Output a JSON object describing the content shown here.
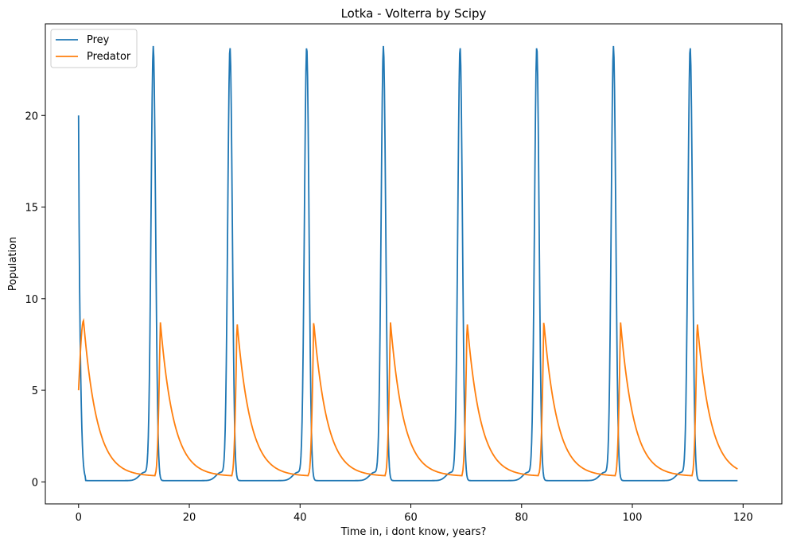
{
  "chart_data": {
    "type": "line",
    "title": "Lotka - Volterra by Scipy",
    "xlabel": "Time in, i dont know, years?",
    "ylabel": "Population",
    "xlim": [
      -6,
      127
    ],
    "ylim": [
      -1.2,
      25.0
    ],
    "xticks": [
      0,
      20,
      40,
      60,
      80,
      100,
      120
    ],
    "yticks": [
      0,
      5,
      10,
      15,
      20
    ],
    "grid": false,
    "legend_position": "top-left",
    "model": {
      "t_start": 0,
      "t_end": 119,
      "initial_prey": 20,
      "initial_predator": 5,
      "period": 13.85,
      "prey_peak": 23.7,
      "prey_peak_time": 13.5,
      "prey_min": 0.07,
      "predator_peak": 8.8,
      "predator_peak_time": 0.9,
      "predator_min": 0.3
    },
    "series": [
      {
        "name": "Prey",
        "color": "#1f77b4"
      },
      {
        "name": "Predator",
        "color": "#ff7f0e"
      }
    ]
  }
}
